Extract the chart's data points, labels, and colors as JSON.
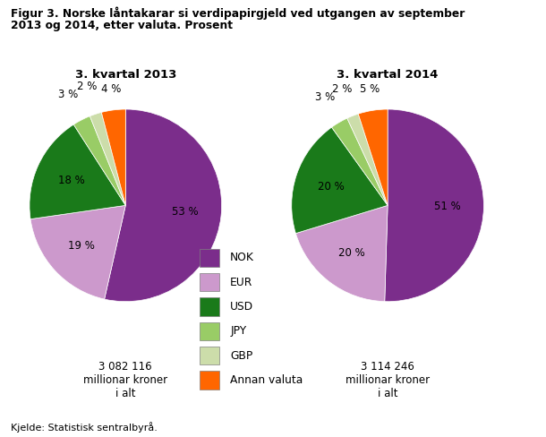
{
  "title_line1": "Figur 3. Norske låntakarar si verdipapirgjeld ved utgangen av september",
  "title_line2": "2013 og 2014, etter valuta. Prosent",
  "subtitle_2013": "3. kvartal 2013",
  "subtitle_2014": "3. kvartal 2014",
  "total_2013": "3 082 116\nmillionar kroner\ni alt",
  "total_2014": "3 114 246\nmillionar kroner\ni alt",
  "labels": [
    "NOK",
    "EUR",
    "USD",
    "JPY",
    "GBP",
    "Annan valuta"
  ],
  "colors": [
    "#7B2D8B",
    "#CC99CC",
    "#1A7A1A",
    "#99CC66",
    "#CCDDAA",
    "#FF6600"
  ],
  "values_2013": [
    53,
    19,
    18,
    3,
    2,
    4
  ],
  "values_2014": [
    51,
    20,
    20,
    3,
    2,
    5
  ],
  "pct_labels_2013": [
    "53 %",
    "19 %",
    "18 %",
    "3 %",
    "2 %",
    "4 %"
  ],
  "pct_labels_2014": [
    "51 %",
    "20 %",
    "20 %",
    "3 %",
    "2 %",
    "5 %"
  ],
  "source": "Kjelde: Statistisk sentralbyrå.",
  "background_color": "#FFFFFF"
}
